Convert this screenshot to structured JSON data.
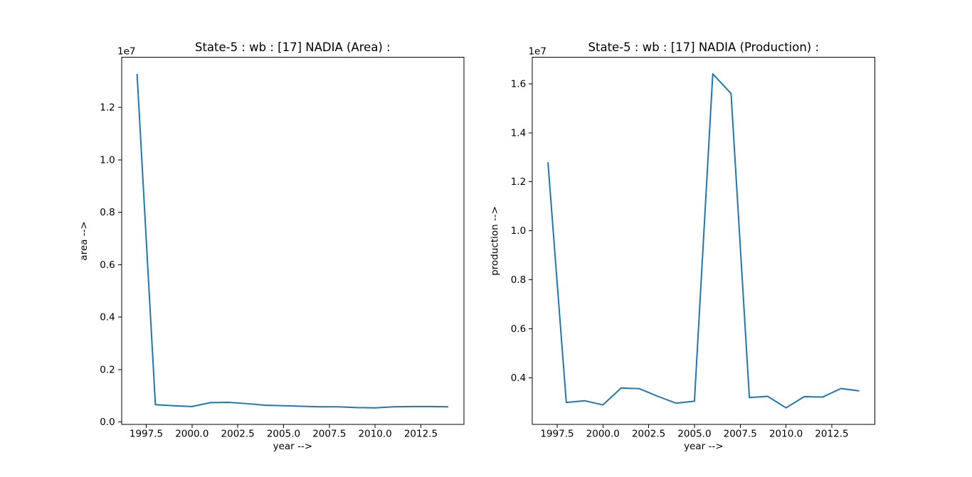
{
  "figure": {
    "background": "#ffffff",
    "accent_line_color": "#1f77b4"
  },
  "chart_data": [
    {
      "type": "line",
      "title": "State-5 : wb : [17] NADIA (Area) :",
      "xlabel": "year -->",
      "ylabel": "area -->",
      "y_offset_label": "1e7",
      "grid": false,
      "legend": "none",
      "xlim": [
        1996.15,
        2014.85
      ],
      "ylim": [
        -97000,
        13917000
      ],
      "x_ticks": {
        "values": [
          1997.5,
          2000.0,
          2002.5,
          2005.0,
          2007.5,
          2010.0,
          2012.5
        ],
        "labels": [
          "1997.5",
          "2000.0",
          "2002.5",
          "2005.0",
          "2007.5",
          "2010.0",
          "2012.5"
        ]
      },
      "y_ticks": {
        "values": [
          0,
          2000000,
          4000000,
          6000000,
          8000000,
          10000000,
          12000000
        ],
        "labels": [
          "0.0",
          "0.2",
          "0.4",
          "0.6",
          "0.8",
          "1.0",
          "1.2"
        ]
      },
      "series": [
        {
          "name": "area",
          "color": "#1f77b4",
          "x": [
            1997,
            1998,
            1999,
            2000,
            2001,
            2002,
            2003,
            2004,
            2005,
            2006,
            2007,
            2008,
            2009,
            2010,
            2011,
            2012,
            2013,
            2014
          ],
          "y": [
            13280000,
            660000,
            620000,
            590000,
            740000,
            750000,
            700000,
            640000,
            620000,
            600000,
            580000,
            580000,
            550000,
            540000,
            580000,
            590000,
            590000,
            580000
          ]
        }
      ]
    },
    {
      "type": "line",
      "title": "State-5 : wb : [17] NADIA (Production) :",
      "xlabel": "year -->",
      "ylabel": "production -->",
      "y_offset_label": "1e7",
      "grid": false,
      "legend": "none",
      "xlim": [
        1996.15,
        2014.85
      ],
      "ylim": [
        2099000,
        17081000
      ],
      "x_ticks": {
        "values": [
          1997.5,
          2000.0,
          2002.5,
          2005.0,
          2007.5,
          2010.0,
          2012.5
        ],
        "labels": [
          "1997.5",
          "2000.0",
          "2002.5",
          "2005.0",
          "2007.5",
          "2010.0",
          "2012.5"
        ]
      },
      "y_ticks": {
        "values": [
          4000000,
          6000000,
          8000000,
          10000000,
          12000000,
          14000000,
          16000000
        ],
        "labels": [
          "0.4",
          "0.6",
          "0.8",
          "1.0",
          "1.2",
          "1.4",
          "1.6"
        ]
      },
      "series": [
        {
          "name": "production",
          "color": "#1f77b4",
          "x": [
            1997,
            1998,
            1999,
            2000,
            2001,
            2002,
            2003,
            2004,
            2005,
            2006,
            2007,
            2008,
            2009,
            2010,
            2011,
            2012,
            2013,
            2014
          ],
          "y": [
            12800000,
            3000000,
            3070000,
            2900000,
            3590000,
            3560000,
            3250000,
            2970000,
            3050000,
            16400000,
            15600000,
            3200000,
            3250000,
            2780000,
            3240000,
            3220000,
            3570000,
            3470000
          ]
        }
      ]
    }
  ]
}
